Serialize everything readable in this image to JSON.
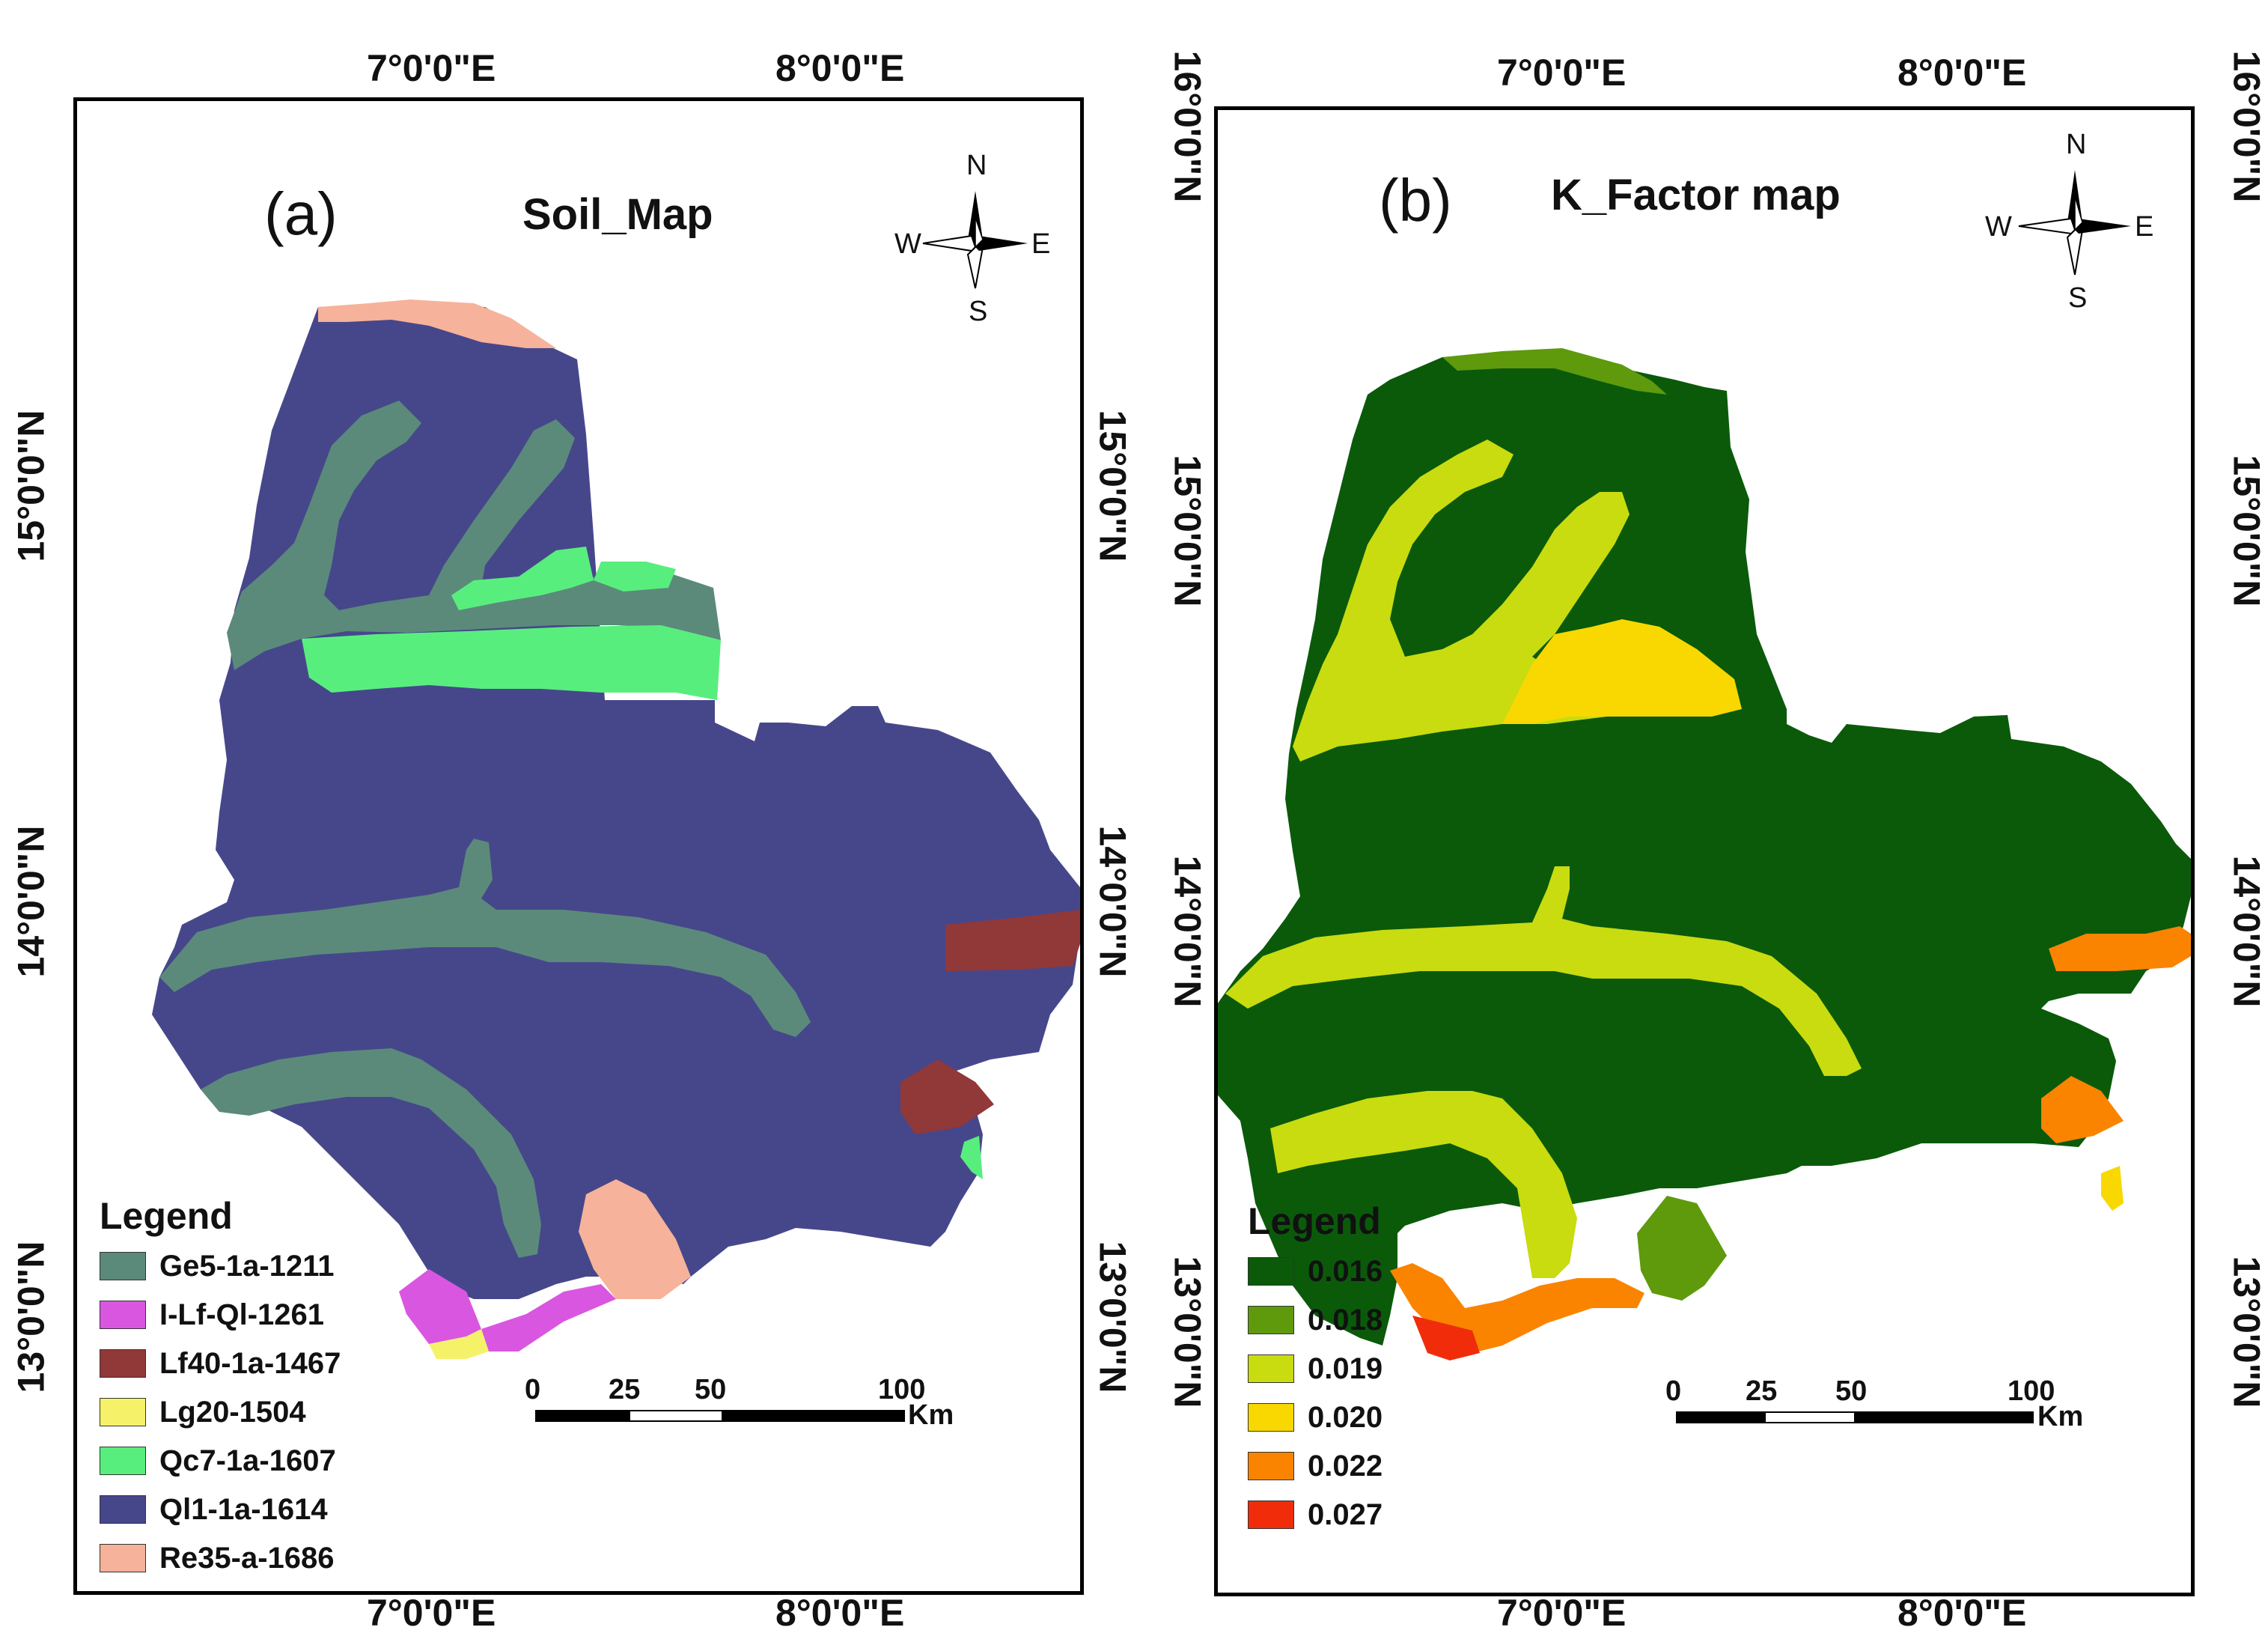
{
  "panel_a": {
    "letter": "(a)",
    "title": "Soil_Map",
    "top_labels": [
      "7°0'0\"E",
      "8°0'0\"E"
    ],
    "bottom_labels": [
      "7°0'0\"E",
      "8°0'0\"E"
    ],
    "left_labels": [
      "15°0'0\"N",
      "14°0'0\"N",
      "13°0'0\"N"
    ],
    "right_labels": [
      "15°0'0\"N",
      "14°0'0\"N",
      "13°0'0\"N"
    ],
    "legend_title": "Legend",
    "legend": [
      {
        "label": "Ge5-1a-1211",
        "color": "#5b8a7a"
      },
      {
        "label": "I-Lf-Ql-1261",
        "color": "#d957e0"
      },
      {
        "label": "Lf40-1a-1467",
        "color": "#913838"
      },
      {
        "label": "Lg20-1504",
        "color": "#f5f26a"
      },
      {
        "label": "Qc7-1a-1607",
        "color": "#58ee7e"
      },
      {
        "label": "Ql1-1a-1614",
        "color": "#46478b"
      },
      {
        "label": "Re35-a-1686",
        "color": "#f6b29a"
      }
    ],
    "compass": {
      "n": "N",
      "s": "S",
      "e": "E",
      "w": "W"
    },
    "scale": {
      "ticks": [
        "0",
        "25",
        "50",
        "100"
      ],
      "unit": "Km"
    }
  },
  "panel_b": {
    "letter": "(b)",
    "title": "K_Factor map",
    "top_labels": [
      "7°0'0\"E",
      "8°0'0\"E"
    ],
    "bottom_labels": [
      "7°0'0\"E",
      "8°0'0\"E"
    ],
    "right_labels": [
      "16°0'0\"N",
      "15°0'0\"N",
      "14°0'0\"N",
      "13°0'0\"N"
    ],
    "left_labels": [
      "16°0'0\"N",
      "15°0'0\"N",
      "14°0'0\"N",
      "13°0'0\"N"
    ],
    "legend_title": "Legend",
    "legend": [
      {
        "label": "0.016",
        "color": "#0a5a0a"
      },
      {
        "label": "0.018",
        "color": "#5e9a0c"
      },
      {
        "label": "0.019",
        "color": "#c8dc10"
      },
      {
        "label": "0.020",
        "color": "#f8d800"
      },
      {
        "label": " 0.022",
        "color": "#fa8400"
      },
      {
        "label": "0.027",
        "color": "#f02c0a"
      }
    ],
    "compass": {
      "n": "N",
      "s": "S",
      "e": "E",
      "w": "W"
    },
    "scale": {
      "ticks": [
        "0",
        "25",
        "50",
        "100"
      ],
      "unit": "Km"
    }
  }
}
